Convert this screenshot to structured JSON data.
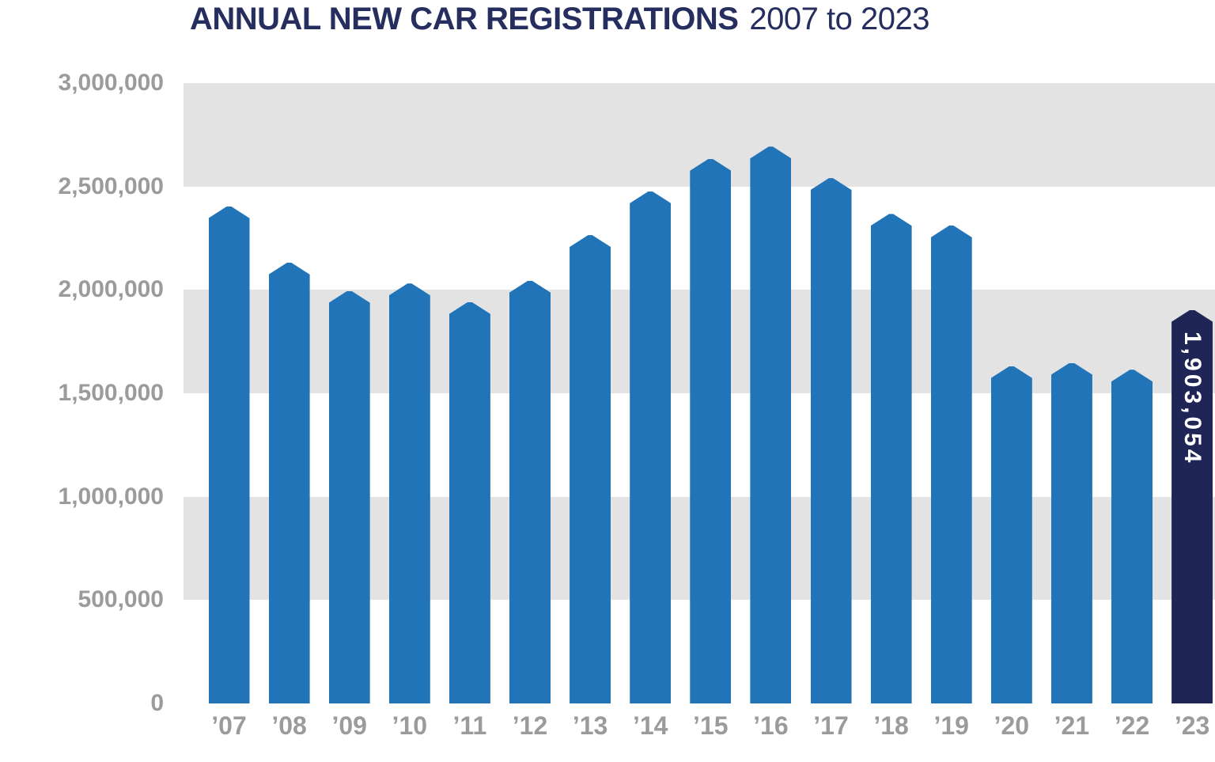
{
  "title": {
    "main": "ANNUAL NEW CAR REGISTRATIONS",
    "range": "2007 to 2023"
  },
  "chart_data": {
    "type": "bar",
    "title": "ANNUAL NEW CAR REGISTRATIONS 2007 to 2023",
    "xlabel": "",
    "ylabel": "",
    "categories": [
      "’07",
      "’08",
      "’09",
      "’10",
      "’11",
      "’12",
      "’13",
      "’14",
      "’15",
      "’16",
      "’17",
      "’18",
      "’19",
      "’20",
      "’21",
      "’22",
      "’23"
    ],
    "values": [
      2404007,
      2131795,
      1994999,
      2030846,
      1941253,
      2044609,
      2264737,
      2476435,
      2633503,
      2692786,
      2540617,
      2367147,
      2311140,
      1631064,
      1647181,
      1614063,
      1903054
    ],
    "ylim": [
      0,
      3000000
    ],
    "ytick_step": 500000,
    "ytick_labels": [
      "3,000,000",
      "2,500,000",
      "2,000,000",
      "1,500,000",
      "1,000,000",
      "500,000",
      "0"
    ],
    "grid": "alternating horizontal 500,000-wide bands, gray then white, from top",
    "legend": "none",
    "bar_shape": "pentagon with pointed top",
    "highlight": {
      "index": 16,
      "label": "1,903,054"
    },
    "colors": {
      "bar": "#2274b8",
      "highlight_bar": "#1f2655",
      "band": "#e3e3e3",
      "axis_text": "#9b9b9b",
      "title_text": "#252e5e",
      "highlight_label_text": "#ffffff",
      "background": "#ffffff"
    }
  }
}
